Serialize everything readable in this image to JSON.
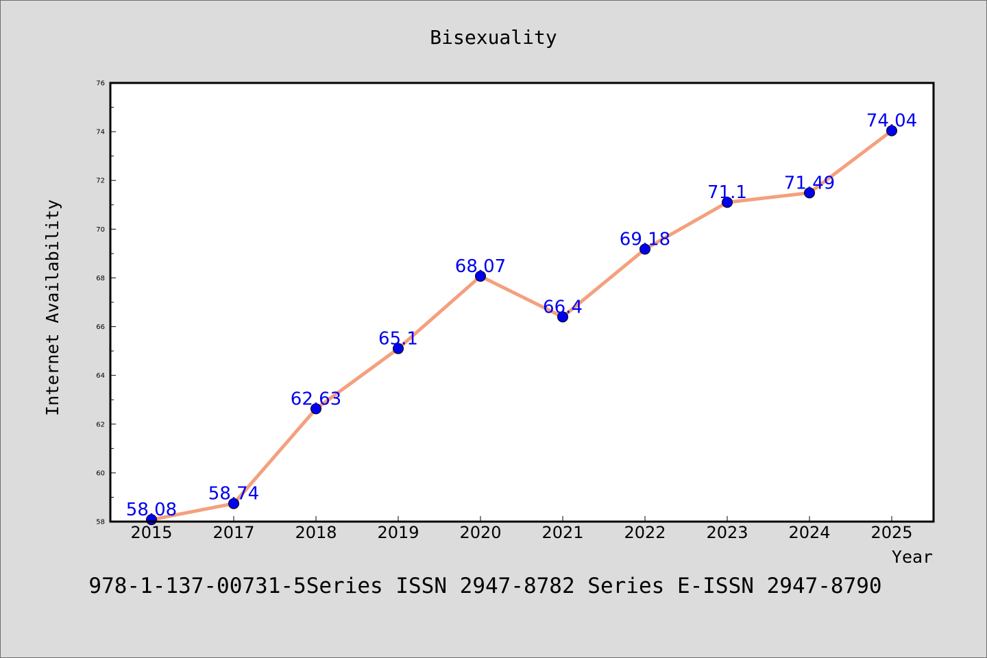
{
  "chart_data": {
    "type": "line",
    "title": "Bisexuality",
    "xlabel": "Year",
    "ylabel": "Internet Availability",
    "categories": [
      "2015",
      "2017",
      "2018",
      "2019",
      "2020",
      "2021",
      "2022",
      "2023",
      "2024",
      "2025"
    ],
    "series": [
      {
        "values": [
          58.08,
          58.74,
          62.63,
          65.1,
          68.07,
          66.4,
          69.18,
          71.1,
          71.49,
          74.04
        ],
        "labels": [
          "58.08",
          "58.74",
          "62.63",
          "65.1",
          "68.07",
          "66.4",
          "69.18",
          "71.1",
          "71.49",
          "74.04"
        ],
        "line_color": "#f4a07e",
        "marker_color": "#0000ee"
      }
    ],
    "ylim": [
      58,
      76
    ],
    "yticks": [
      "58",
      "60",
      "62",
      "64",
      "66",
      "68",
      "70",
      "72",
      "74",
      "76"
    ],
    "grid": false,
    "legend": "none"
  },
  "footer": "978-1-137-00731-5Series ISSN 2947-8782 Series E-ISSN 2947-8790"
}
